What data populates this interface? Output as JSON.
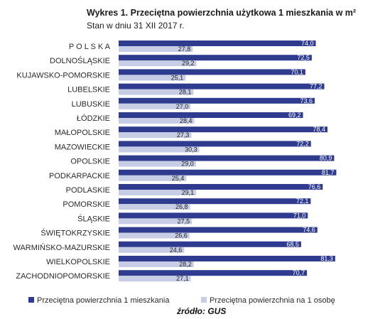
{
  "chart_data": {
    "type": "bar",
    "orientation": "horizontal",
    "title": "Wykres 1. Przeciętna powierzchnia użytkowa 1 mieszkania w m²",
    "subtitle": "Stan w dniu 31 XII 2017 r.",
    "categories": [
      "POLSKA",
      "DOLNOŚLĄSKIE",
      "KUJAWSKO-POMORSKIE",
      "LUBELSKIE",
      "LUBUSKIE",
      "ŁÓDZKIE",
      "MAŁOPOLSKIE",
      "MAZOWIECKIE",
      "OPOLSKIE",
      "PODKARPACKIE",
      "PODLASKIE",
      "POMORSKIE",
      "ŚLĄSKIE",
      "ŚWIĘTOKRZYSKIE",
      "WARMIŃSKO-MAZURSKIE",
      "WIELKOPOLSKIE",
      "ZACHODNIOPOMORSKIE"
    ],
    "category_labels": [
      "P O L S K A",
      "DOLNOŚLĄSKIE",
      "KUJAWSKO-POMORSKIE",
      "LUBELSKIE",
      "LUBUSKIE",
      "ŁÓDZKIE",
      "MAŁOPOLSKIE",
      "MAZOWIECKIE",
      "OPOLSKIE",
      "PODKARPACKIE",
      "PODLASKIE",
      "POMORSKIE",
      "ŚLĄSKIE",
      "ŚWIĘTOKRZYSKIE",
      "WARMIŃSKO-MAZURSKIE",
      "WIELKOPOLSKIE",
      "ZACHODNIOPOMORSKIE"
    ],
    "series": [
      {
        "name": "Przeciętna powierzchnia 1 mieszkania",
        "color": "#2e3b8f",
        "values": [
          74.0,
          72.5,
          70.1,
          77.2,
          73.6,
          69.2,
          78.4,
          72.2,
          80.9,
          81.7,
          76.6,
          72.1,
          71.0,
          74.6,
          68.5,
          81.3,
          70.7
        ],
        "labels": [
          "74,0",
          "72,5",
          "70,1",
          "77,2",
          "73,6",
          "69,2",
          "78,4",
          "72,2",
          "80,9",
          "81,7",
          "76,6",
          "72,1",
          "71,0",
          "74,6",
          "68,5",
          "81,3",
          "70,7"
        ]
      },
      {
        "name": "Przeciętna powierzchnia na 1 osobę",
        "color": "#c8cde6",
        "values": [
          27.8,
          29.2,
          25.1,
          28.1,
          27.0,
          28.4,
          27.3,
          30.3,
          29.0,
          25.4,
          29.1,
          26.8,
          27.5,
          26.6,
          24.6,
          28.2,
          27.1
        ],
        "labels": [
          "27,8",
          "29,2",
          "25,1",
          "28,1",
          "27,0",
          "28,4",
          "27,3",
          "30,3",
          "29,0",
          "25,4",
          "29,1",
          "26,8",
          "27,5",
          "26,6",
          "24,6",
          "28,2",
          "27,1"
        ]
      }
    ],
    "grid": false,
    "legend_position": "bottom"
  },
  "source": "źródło: GUS"
}
